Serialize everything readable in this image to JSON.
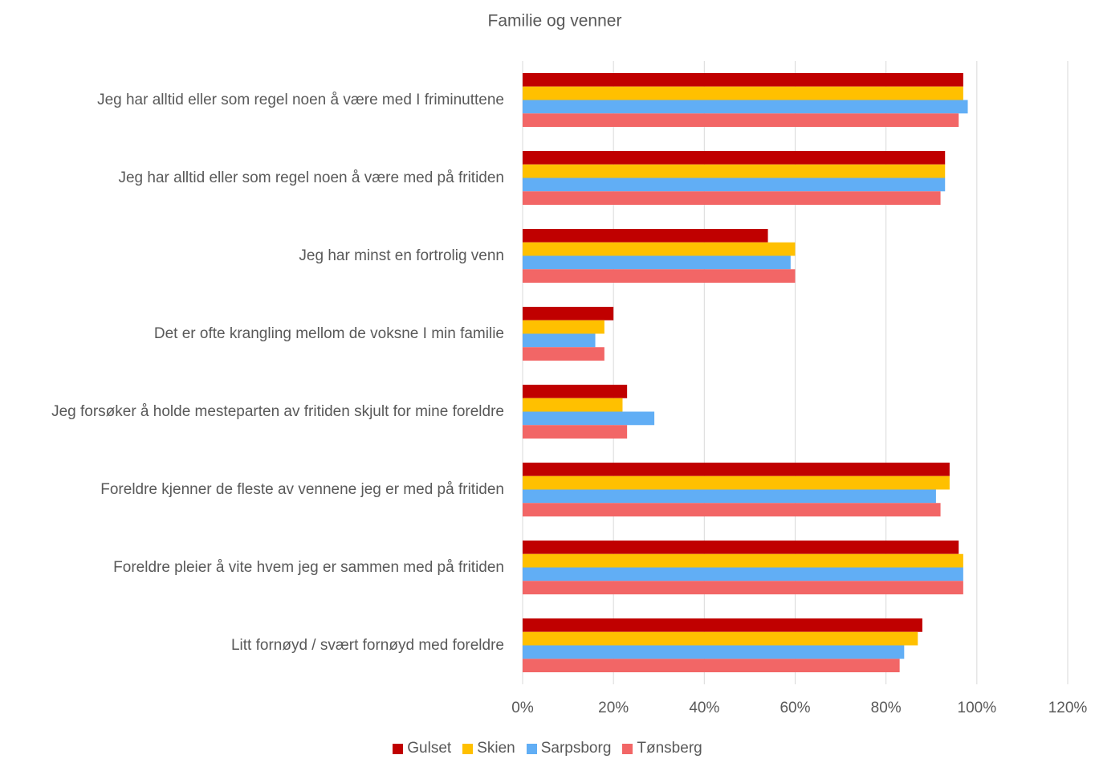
{
  "chart_data": {
    "type": "bar",
    "orientation": "horizontal",
    "title": "Familie og venner",
    "categories": [
      "Jeg har alltid eller som regel noen å være med I friminuttene",
      "Jeg har alltid eller som regel noen å være med på fritiden",
      "Jeg har minst en fortrolig venn",
      "Det er ofte krangling mellom de voksne I min familie",
      "Jeg forsøker å holde mesteparten av fritiden skjult for mine foreldre",
      "Foreldre kjenner de fleste av vennene jeg er med på fritiden",
      "Foreldre pleier å vite hvem jeg er sammen med på fritiden",
      "Litt fornøyd / svært fornøyd med foreldre"
    ],
    "series": [
      {
        "name": "Gulset",
        "color": "#c00000",
        "values": [
          97,
          93,
          54,
          20,
          23,
          94,
          96,
          88
        ]
      },
      {
        "name": "Skien",
        "color": "#ffc000",
        "values": [
          97,
          93,
          60,
          18,
          22,
          94,
          97,
          87
        ]
      },
      {
        "name": "Sarpsborg",
        "color": "#61aef5",
        "values": [
          98,
          93,
          59,
          16,
          29,
          91,
          97,
          84
        ]
      },
      {
        "name": "Tønsberg",
        "color": "#f26666",
        "values": [
          96,
          92,
          60,
          18,
          23,
          92,
          97,
          83
        ]
      }
    ],
    "xlim": [
      0,
      120
    ],
    "xticks": [
      {
        "value": 0,
        "label": "0%"
      },
      {
        "value": 20,
        "label": "20%"
      },
      {
        "value": 40,
        "label": "40%"
      },
      {
        "value": 60,
        "label": "60%"
      },
      {
        "value": 80,
        "label": "80%"
      },
      {
        "value": 100,
        "label": "100%"
      },
      {
        "value": 120,
        "label": "120%"
      }
    ],
    "grid": true,
    "legend": "bottom"
  }
}
